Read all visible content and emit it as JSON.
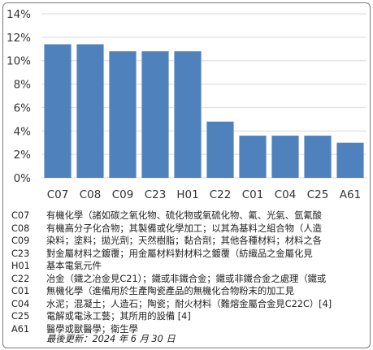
{
  "chart_data": {
    "type": "bar",
    "categories": [
      "C07",
      "C08",
      "C09",
      "C23",
      "H01",
      "C22",
      "C01",
      "C04",
      "C25",
      "A61"
    ],
    "values": [
      11.4,
      11.4,
      10.8,
      10.8,
      10.8,
      4.8,
      3.6,
      3.6,
      3.6,
      3.0
    ],
    "ylim": [
      0,
      14
    ],
    "yticks": [
      "0%",
      "2%",
      "4%",
      "6%",
      "8%",
      "10%",
      "12%",
      "14%"
    ],
    "grid": true,
    "bar_color": "#4f81bd"
  },
  "legend": [
    {
      "code": "C07",
      "desc": "有機化學（諸如碳之氧化物、硫化物或氧硫化物、氰、光氣、氫氰酸"
    },
    {
      "code": "C08",
      "desc": "有機高分子化合物；其製備或化學加工；以其為基料之組合物（人造"
    },
    {
      "code": "C09",
      "desc": "染料；塗料；拋光劑；天然樹脂；黏合劑；其他各種材料；材料之各"
    },
    {
      "code": "C23",
      "desc": "對金屬材料之鍍覆；用金屬材料對材料之鍍覆（紡織品之金屬化見"
    },
    {
      "code": "H01",
      "desc": "基本電氣元件"
    },
    {
      "code": "C22",
      "desc": "冶金（鐵之冶金見C21）；鐵或非鐵合金；鐵或非鐵合金之處理（鐵或"
    },
    {
      "code": "C01",
      "desc": "無機化學（進備用於生產陶瓷產品的無機化合物粉末的加工見"
    },
    {
      "code": "C04",
      "desc": "水泥；混凝土；人造石；陶瓷；耐火材料（難熔金屬合金見C22C）[4]"
    },
    {
      "code": "C25",
      "desc": "電解或電泳工藝；其所用的設備 [4]"
    },
    {
      "code": "A61",
      "desc": "醫學或獸醫學；衛生學"
    }
  ],
  "updated": "最後更新：2024 年 6 月 30 日"
}
